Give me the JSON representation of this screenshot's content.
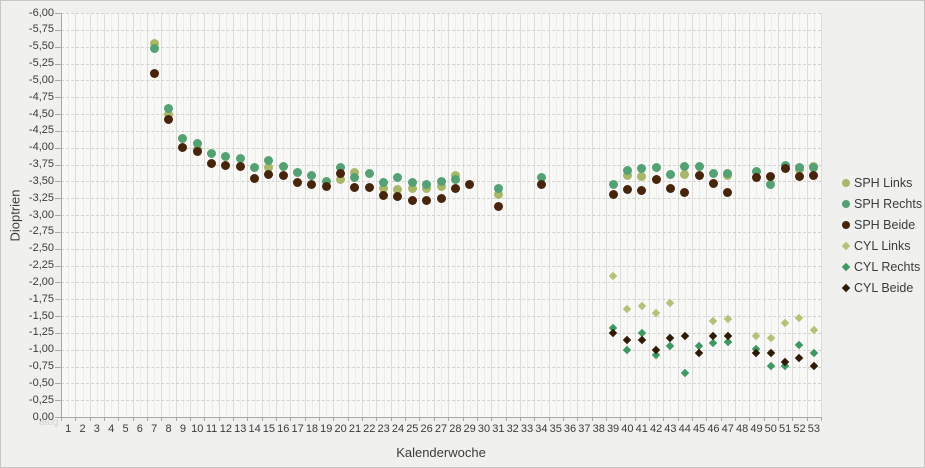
{
  "watermark": "atog",
  "chart_data": {
    "type": "scatter",
    "title": "",
    "xlabel": "Kalenderwoche",
    "ylabel": "Dioptrien",
    "x_ticks": [
      "1",
      "2",
      "3",
      "4",
      "5",
      "6",
      "7",
      "8",
      "9",
      "10",
      "11",
      "12",
      "13",
      "14",
      "15",
      "16",
      "17",
      "18",
      "19",
      "20",
      "21",
      "22",
      "23",
      "24",
      "25",
      "26",
      "27",
      "28",
      "29",
      "30",
      "31",
      "32",
      "33",
      "34",
      "35",
      "36",
      "37",
      "38",
      "39",
      "40",
      "41",
      "42",
      "43",
      "44",
      "45",
      "46",
      "47",
      "48",
      "49",
      "50",
      "51",
      "52",
      "53"
    ],
    "x_range": [
      1,
      53
    ],
    "y_axis": {
      "top_value": -6.0,
      "bottom_value": 0.0,
      "step": 0.25,
      "tick_labels": [
        "-6,00",
        "-5,75",
        "-5,50",
        "-5,25",
        "-5,00",
        "-4,75",
        "-4,50",
        "-4,25",
        "-4,00",
        "-3,75",
        "-3,50",
        "-3,25",
        "-3,00",
        "-2,75",
        "-2,50",
        "-2,25",
        "-2,00",
        "-1,75",
        "-1,50",
        "-1,25",
        "-1,00",
        "-0,75",
        "-0,50",
        "-0,25",
        "0,00"
      ]
    },
    "grid": {
      "vertical_major": true,
      "vertical_minor": true,
      "horizontal_dashed": true
    },
    "legend_position": "right",
    "series": [
      {
        "name": "SPH Links",
        "marker": "circle",
        "color": "#a9b768",
        "size": 9,
        "points": [
          [
            7,
            -5.55
          ],
          [
            8,
            -4.5
          ],
          [
            10,
            -3.97
          ],
          [
            15,
            -3.71
          ],
          [
            20,
            -3.53
          ],
          [
            21,
            -3.63
          ],
          [
            23,
            -3.39
          ],
          [
            24,
            -3.38
          ],
          [
            25,
            -3.39
          ],
          [
            26,
            -3.4
          ],
          [
            27,
            -3.42
          ],
          [
            28,
            -3.59
          ],
          [
            31,
            -3.3
          ],
          [
            40,
            -3.58
          ],
          [
            41,
            -3.57
          ],
          [
            44,
            -3.6
          ],
          [
            47,
            -3.58
          ],
          [
            52,
            -3.68
          ],
          [
            53,
            -3.72
          ]
        ]
      },
      {
        "name": "SPH Rechts",
        "marker": "circle",
        "color": "#54a173",
        "size": 9,
        "points": [
          [
            7,
            -5.48
          ],
          [
            8,
            -4.58
          ],
          [
            9,
            -4.13
          ],
          [
            10,
            -4.06
          ],
          [
            11,
            -3.91
          ],
          [
            12,
            -3.87
          ],
          [
            13,
            -3.84
          ],
          [
            14,
            -3.71
          ],
          [
            15,
            -3.81
          ],
          [
            16,
            -3.72
          ],
          [
            17,
            -3.63
          ],
          [
            18,
            -3.58
          ],
          [
            19,
            -3.5
          ],
          [
            20,
            -3.7
          ],
          [
            21,
            -3.56
          ],
          [
            22,
            -3.62
          ],
          [
            23,
            -3.49
          ],
          [
            24,
            -3.55
          ],
          [
            25,
            -3.48
          ],
          [
            26,
            -3.45
          ],
          [
            27,
            -3.5
          ],
          [
            28,
            -3.52
          ],
          [
            31,
            -3.39
          ],
          [
            34,
            -3.56
          ],
          [
            39,
            -3.45
          ],
          [
            40,
            -3.66
          ],
          [
            41,
            -3.69
          ],
          [
            42,
            -3.71
          ],
          [
            43,
            -3.6
          ],
          [
            44,
            -3.72
          ],
          [
            45,
            -3.72
          ],
          [
            46,
            -3.61
          ],
          [
            47,
            -3.62
          ],
          [
            49,
            -3.64
          ],
          [
            50,
            -3.45
          ],
          [
            51,
            -3.73
          ],
          [
            52,
            -3.71
          ],
          [
            53,
            -3.7
          ]
        ]
      },
      {
        "name": "SPH Beide",
        "marker": "circle",
        "color": "#47250d",
        "size": 9,
        "points": [
          [
            7,
            -5.1
          ],
          [
            8,
            -4.42
          ],
          [
            9,
            -4.0
          ],
          [
            10,
            -3.94
          ],
          [
            11,
            -3.77
          ],
          [
            12,
            -3.74
          ],
          [
            13,
            -3.72
          ],
          [
            14,
            -3.54
          ],
          [
            15,
            -3.6
          ],
          [
            16,
            -3.58
          ],
          [
            17,
            -3.49
          ],
          [
            18,
            -3.46
          ],
          [
            19,
            -3.42
          ],
          [
            20,
            -3.62
          ],
          [
            21,
            -3.41
          ],
          [
            22,
            -3.41
          ],
          [
            23,
            -3.29
          ],
          [
            24,
            -3.28
          ],
          [
            25,
            -3.22
          ],
          [
            26,
            -3.22
          ],
          [
            27,
            -3.24
          ],
          [
            28,
            -3.39
          ],
          [
            29,
            -3.45
          ],
          [
            31,
            -3.12
          ],
          [
            34,
            -3.45
          ],
          [
            39,
            -3.3
          ],
          [
            40,
            -3.38
          ],
          [
            41,
            -3.36
          ],
          [
            42,
            -3.53
          ],
          [
            43,
            -3.39
          ],
          [
            44,
            -3.33
          ],
          [
            45,
            -3.59
          ],
          [
            46,
            -3.47
          ],
          [
            47,
            -3.34
          ],
          [
            49,
            -3.56
          ],
          [
            50,
            -3.57
          ],
          [
            51,
            -3.69
          ],
          [
            52,
            -3.57
          ],
          [
            53,
            -3.58
          ]
        ]
      },
      {
        "name": "CYL Links",
        "marker": "diamond",
        "color": "#b5c078",
        "size": 6,
        "points": [
          [
            39,
            -2.1
          ],
          [
            40,
            -1.6
          ],
          [
            41,
            -1.65
          ],
          [
            42,
            -1.55
          ],
          [
            43,
            -1.7
          ],
          [
            46,
            -1.43
          ],
          [
            47,
            -1.46
          ],
          [
            49,
            -1.2
          ],
          [
            50,
            -1.18
          ],
          [
            51,
            -1.4
          ],
          [
            52,
            -1.47
          ],
          [
            53,
            -1.29
          ]
        ]
      },
      {
        "name": "CYL Rechts",
        "marker": "diamond",
        "color": "#3f9861",
        "size": 6,
        "points": [
          [
            39,
            -1.32
          ],
          [
            40,
            -1.0
          ],
          [
            41,
            -1.25
          ],
          [
            42,
            -0.92
          ],
          [
            43,
            -1.05
          ],
          [
            44,
            -0.65
          ],
          [
            45,
            -1.06
          ],
          [
            46,
            -1.1
          ],
          [
            47,
            -1.12
          ],
          [
            49,
            -1.01
          ],
          [
            50,
            -0.76
          ],
          [
            51,
            -0.76
          ],
          [
            52,
            -1.07
          ],
          [
            53,
            -0.95
          ]
        ]
      },
      {
        "name": "CYL Beide",
        "marker": "diamond",
        "color": "#2f1a05",
        "size": 6,
        "points": [
          [
            39,
            -1.25
          ],
          [
            40,
            -1.15
          ],
          [
            41,
            -1.15
          ],
          [
            42,
            -1.0
          ],
          [
            43,
            -1.18
          ],
          [
            44,
            -1.2
          ],
          [
            45,
            -0.95
          ],
          [
            46,
            -1.2
          ],
          [
            47,
            -1.2
          ],
          [
            49,
            -0.95
          ],
          [
            50,
            -0.95
          ],
          [
            51,
            -0.82
          ],
          [
            52,
            -0.88
          ],
          [
            53,
            -0.76
          ]
        ]
      }
    ]
  }
}
